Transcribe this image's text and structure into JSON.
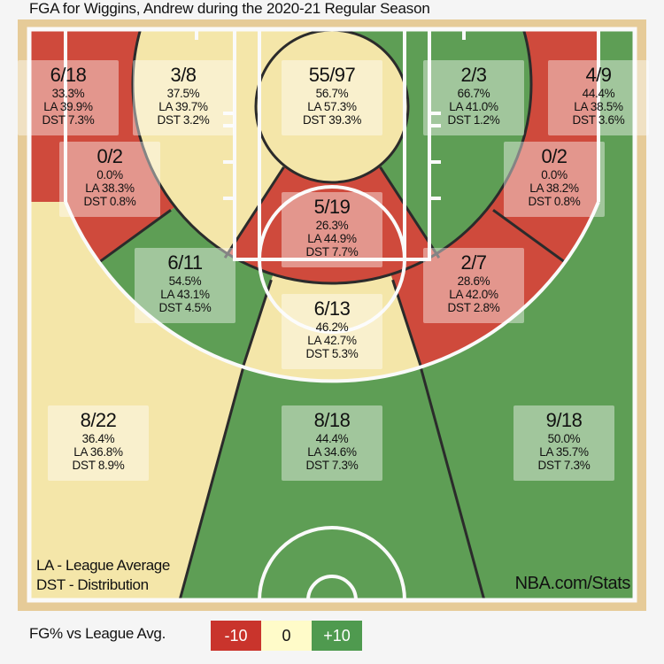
{
  "title": "FGA for Wiggins, Andrew during the 2020-21 Regular Season",
  "chart_data": {
    "type": "heatmap",
    "title": "FGA for Wiggins, Andrew during the 2020-21 Regular Season",
    "zones": [
      {
        "id": "left-corner-3",
        "label": "6/18",
        "pct": "33.3%",
        "la": "LA 39.9%",
        "dst": "DST 7.3%",
        "made": 6,
        "attempts": 18,
        "rating": "below"
      },
      {
        "id": "left-8-16",
        "label": "3/8",
        "pct": "37.5%",
        "la": "LA 39.7%",
        "dst": "DST 3.2%",
        "made": 3,
        "attempts": 8,
        "rating": "even"
      },
      {
        "id": "restricted-area",
        "label": "55/97",
        "pct": "56.7%",
        "la": "LA 57.3%",
        "dst": "DST 39.3%",
        "made": 55,
        "attempts": 97,
        "rating": "even"
      },
      {
        "id": "right-8-16",
        "label": "2/3",
        "pct": "66.7%",
        "la": "LA 41.0%",
        "dst": "DST 1.2%",
        "made": 2,
        "attempts": 3,
        "rating": "above"
      },
      {
        "id": "right-corner-3",
        "label": "4/9",
        "pct": "44.4%",
        "la": "LA 38.5%",
        "dst": "DST 3.6%",
        "made": 4,
        "attempts": 9,
        "rating": "above"
      },
      {
        "id": "left-16-24",
        "label": "0/2",
        "pct": "0.0%",
        "la": "LA 38.3%",
        "dst": "DST 0.8%",
        "made": 0,
        "attempts": 2,
        "rating": "below"
      },
      {
        "id": "right-16-24",
        "label": "0/2",
        "pct": "0.0%",
        "la": "LA 38.2%",
        "dst": "DST 0.8%",
        "made": 0,
        "attempts": 2,
        "rating": "below"
      },
      {
        "id": "center-8-16",
        "label": "5/19",
        "pct": "26.3%",
        "la": "LA 44.9%",
        "dst": "DST 7.7%",
        "made": 5,
        "attempts": 19,
        "rating": "below"
      },
      {
        "id": "left-center-16-24",
        "label": "6/11",
        "pct": "54.5%",
        "la": "LA 43.1%",
        "dst": "DST 4.5%",
        "made": 6,
        "attempts": 11,
        "rating": "above"
      },
      {
        "id": "right-center-16-24",
        "label": "2/7",
        "pct": "28.6%",
        "la": "LA 42.0%",
        "dst": "DST 2.8%",
        "made": 2,
        "attempts": 7,
        "rating": "below"
      },
      {
        "id": "center-16-24",
        "label": "6/13",
        "pct": "46.2%",
        "la": "LA 42.7%",
        "dst": "DST 5.3%",
        "made": 6,
        "attempts": 13,
        "rating": "even"
      },
      {
        "id": "left-above-break-3",
        "label": "8/22",
        "pct": "36.4%",
        "la": "LA 36.8%",
        "dst": "DST 8.9%",
        "made": 8,
        "attempts": 22,
        "rating": "even"
      },
      {
        "id": "center-above-break-3",
        "label": "8/18",
        "pct": "44.4%",
        "la": "LA 34.6%",
        "dst": "DST 7.3%",
        "made": 8,
        "attempts": 18,
        "rating": "above"
      },
      {
        "id": "right-above-break-3",
        "label": "9/18",
        "pct": "50.0%",
        "la": "LA 35.7%",
        "dst": "DST 7.3%",
        "made": 9,
        "attempts": 18,
        "rating": "above"
      }
    ],
    "colors": {
      "below": "#cf4a3c",
      "even": "#f4e6a9",
      "above": "#5e9e55"
    }
  },
  "notes": {
    "la": "LA - League Average",
    "dst": "DST - Distribution",
    "source": "NBA.com/Stats"
  },
  "legend": {
    "label": "FG% vs League Avg.",
    "items": [
      {
        "text": "-10",
        "color": "#c9342c"
      },
      {
        "text": "0",
        "color": "#fffbc9"
      },
      {
        "text": "+10",
        "color": "#4f9a4f"
      }
    ]
  }
}
